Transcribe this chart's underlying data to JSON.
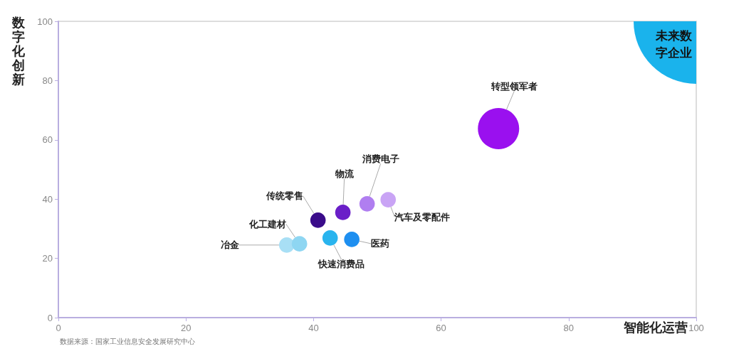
{
  "chart_data": {
    "type": "bubble",
    "xlabel": "智能化运营",
    "ylabel": "数字化创新",
    "xlim": [
      0,
      100
    ],
    "ylim": [
      0,
      100
    ],
    "xticks": [
      0,
      20,
      40,
      60,
      80,
      100
    ],
    "yticks": [
      0,
      20,
      40,
      60,
      80,
      100
    ],
    "grid": false,
    "legend": false,
    "annotations": [
      "未来数字企业",
      "数据来源：国家工业信息安全发展研究中心"
    ],
    "series": [
      {
        "name": "冶金",
        "color": "#a8dff5",
        "x": [
          35.8
        ],
        "values": [
          24.5
        ],
        "sizes": [
          0.14
        ]
      },
      {
        "name": "化工建材",
        "color": "#8ed6f2",
        "x": [
          37.8
        ],
        "values": [
          24.9
        ],
        "sizes": [
          0.14
        ]
      },
      {
        "name": "传统零售",
        "color": "#3a0c8a",
        "x": [
          40.7
        ],
        "values": [
          32.9
        ],
        "sizes": [
          0.14
        ]
      },
      {
        "name": "快速消费品",
        "color": "#29b4ee",
        "x": [
          42.6
        ],
        "values": [
          26.9
        ],
        "sizes": [
          0.14
        ]
      },
      {
        "name": "物流",
        "color": "#6a1fc8",
        "x": [
          44.6
        ],
        "values": [
          35.5
        ],
        "sizes": [
          0.14
        ]
      },
      {
        "name": "医药",
        "color": "#1e8ff0",
        "x": [
          46.0
        ],
        "values": [
          26.4
        ],
        "sizes": [
          0.14
        ]
      },
      {
        "name": "消费电子",
        "color": "#b07ef0",
        "x": [
          48.4
        ],
        "values": [
          38.4
        ],
        "sizes": [
          0.14
        ]
      },
      {
        "name": "汽车及零配件",
        "color": "#c9a4f5",
        "x": [
          51.7
        ],
        "values": [
          39.8
        ],
        "sizes": [
          0.14
        ]
      },
      {
        "name": "转型领军者",
        "color": "#9a10ef",
        "x": [
          69.0
        ],
        "values": [
          63.8
        ],
        "sizes": [
          1
        ]
      }
    ]
  }
}
